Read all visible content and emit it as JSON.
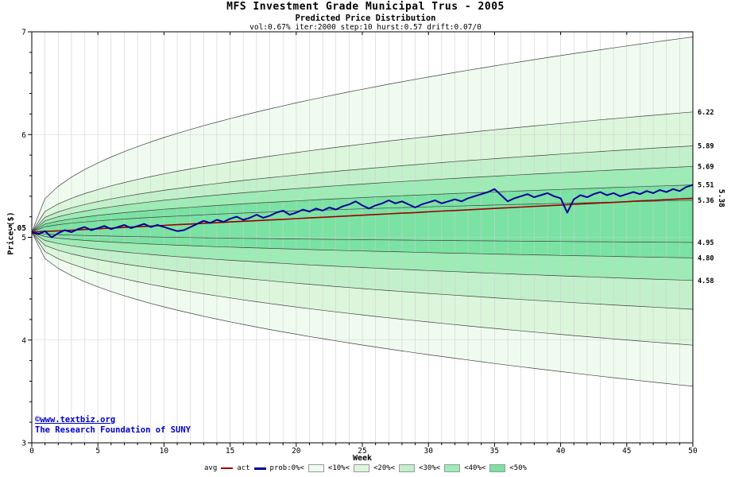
{
  "chart_data": {
    "type": "area",
    "title": "MFS Investment Grade Municipal Trus - 2005",
    "subtitle": "Predicted Price Distribution",
    "params_line": "vol:0.67% iter:2000 step:10 hurst:0.57 drift:0.07/0",
    "xlabel": "Week",
    "ylabel": "Price ($)",
    "xlim": [
      0,
      50
    ],
    "ylim": [
      3,
      7
    ],
    "x_ticks": [
      0,
      5,
      10,
      15,
      20,
      25,
      30,
      35,
      40,
      45,
      50
    ],
    "y_ticks": [
      3,
      4,
      5,
      6,
      7
    ],
    "grid": true,
    "legend_position": "bottom",
    "start_price": 5.05,
    "fan_power": 0.45,
    "start_label": {
      "label": "5.05",
      "value": 5.05
    },
    "avg_end_label": {
      "label": "5.38",
      "value": 5.38
    },
    "bands": [
      {
        "prob": "0%",
        "top_end": 6.95,
        "bottom_end": 3.55,
        "color": "#f0fbf0"
      },
      {
        "prob": "10%",
        "top_end": 6.22,
        "bottom_end": 3.95,
        "color": "#dcf6dc"
      },
      {
        "prob": "20%",
        "top_end": 5.89,
        "bottom_end": 4.3,
        "color": "#c2f0cb"
      },
      {
        "prob": "30%",
        "top_end": 5.69,
        "bottom_end": 4.58,
        "color": "#9debb5"
      },
      {
        "prob": "40%",
        "top_end": 5.51,
        "bottom_end": 4.8,
        "color": "#7ae2a2"
      },
      {
        "prob": "50%",
        "top_end": 5.36,
        "bottom_end": 4.95,
        "color": "#7ae2a2"
      }
    ],
    "edge_labels": [
      {
        "label": "6.22",
        "value": 6.22
      },
      {
        "label": "5.89",
        "value": 5.89
      },
      {
        "label": "5.69",
        "value": 5.69
      },
      {
        "label": "5.51",
        "value": 5.51
      },
      {
        "label": "5.36",
        "value": 5.36
      },
      {
        "label": "4.95",
        "value": 4.95
      },
      {
        "label": "4.80",
        "value": 4.8
      },
      {
        "label": "4.58",
        "value": 4.58
      }
    ],
    "series": {
      "avg": {
        "name": "avg",
        "x_step": 1,
        "values": [
          5.05,
          5.057,
          5.063,
          5.07,
          5.076,
          5.083,
          5.09,
          5.096,
          5.103,
          5.109,
          5.116,
          5.123,
          5.129,
          5.136,
          5.142,
          5.149,
          5.156,
          5.162,
          5.169,
          5.175,
          5.182,
          5.189,
          5.195,
          5.202,
          5.208,
          5.215,
          5.222,
          5.228,
          5.235,
          5.241,
          5.248,
          5.255,
          5.261,
          5.268,
          5.274,
          5.281,
          5.288,
          5.294,
          5.301,
          5.307,
          5.314,
          5.321,
          5.327,
          5.334,
          5.34,
          5.347,
          5.354,
          5.36,
          5.367,
          5.373,
          5.38
        ]
      },
      "act": {
        "name": "act",
        "x_step": 0.5,
        "values": [
          5.05,
          5.03,
          5.06,
          5.0,
          5.04,
          5.07,
          5.05,
          5.08,
          5.1,
          5.07,
          5.09,
          5.11,
          5.08,
          5.1,
          5.12,
          5.09,
          5.11,
          5.13,
          5.1,
          5.12,
          5.1,
          5.08,
          5.06,
          5.07,
          5.1,
          5.13,
          5.16,
          5.14,
          5.17,
          5.15,
          5.18,
          5.2,
          5.17,
          5.19,
          5.22,
          5.19,
          5.21,
          5.24,
          5.26,
          5.22,
          5.24,
          5.27,
          5.25,
          5.28,
          5.26,
          5.29,
          5.27,
          5.3,
          5.32,
          5.35,
          5.31,
          5.28,
          5.31,
          5.33,
          5.36,
          5.33,
          5.35,
          5.32,
          5.29,
          5.32,
          5.34,
          5.36,
          5.33,
          5.35,
          5.37,
          5.35,
          5.38,
          5.4,
          5.42,
          5.44,
          5.47,
          5.41,
          5.35,
          5.38,
          5.4,
          5.42,
          5.39,
          5.41,
          5.43,
          5.4,
          5.38,
          5.24,
          5.37,
          5.41,
          5.39,
          5.42,
          5.44,
          5.41,
          5.43,
          5.4,
          5.42,
          5.44,
          5.42,
          5.45,
          5.43,
          5.46,
          5.44,
          5.47,
          5.45,
          5.49,
          5.51
        ]
      }
    },
    "palette": {
      "act": "#000099",
      "avg": "#990000",
      "band_outline": "#404040",
      "grid": "#cfcfcf",
      "axis": "#000000",
      "watermark": "#0000cc",
      "avg_label": "#cc0000"
    },
    "legend": {
      "avg_label": "avg",
      "act_label": "act",
      "prob_labels": [
        "prob:0%<",
        "<10%<",
        "<20%<",
        "<30%<",
        "<40%<",
        "<50%"
      ],
      "swatches": [
        "#f0fbf0",
        "#dcf6dc",
        "#c2f0cb",
        "#9debb5",
        "#7ae2a2"
      ]
    },
    "watermark": {
      "line1": "©www.textbiz.org",
      "line2": "The Research Foundation of SUNY"
    }
  }
}
